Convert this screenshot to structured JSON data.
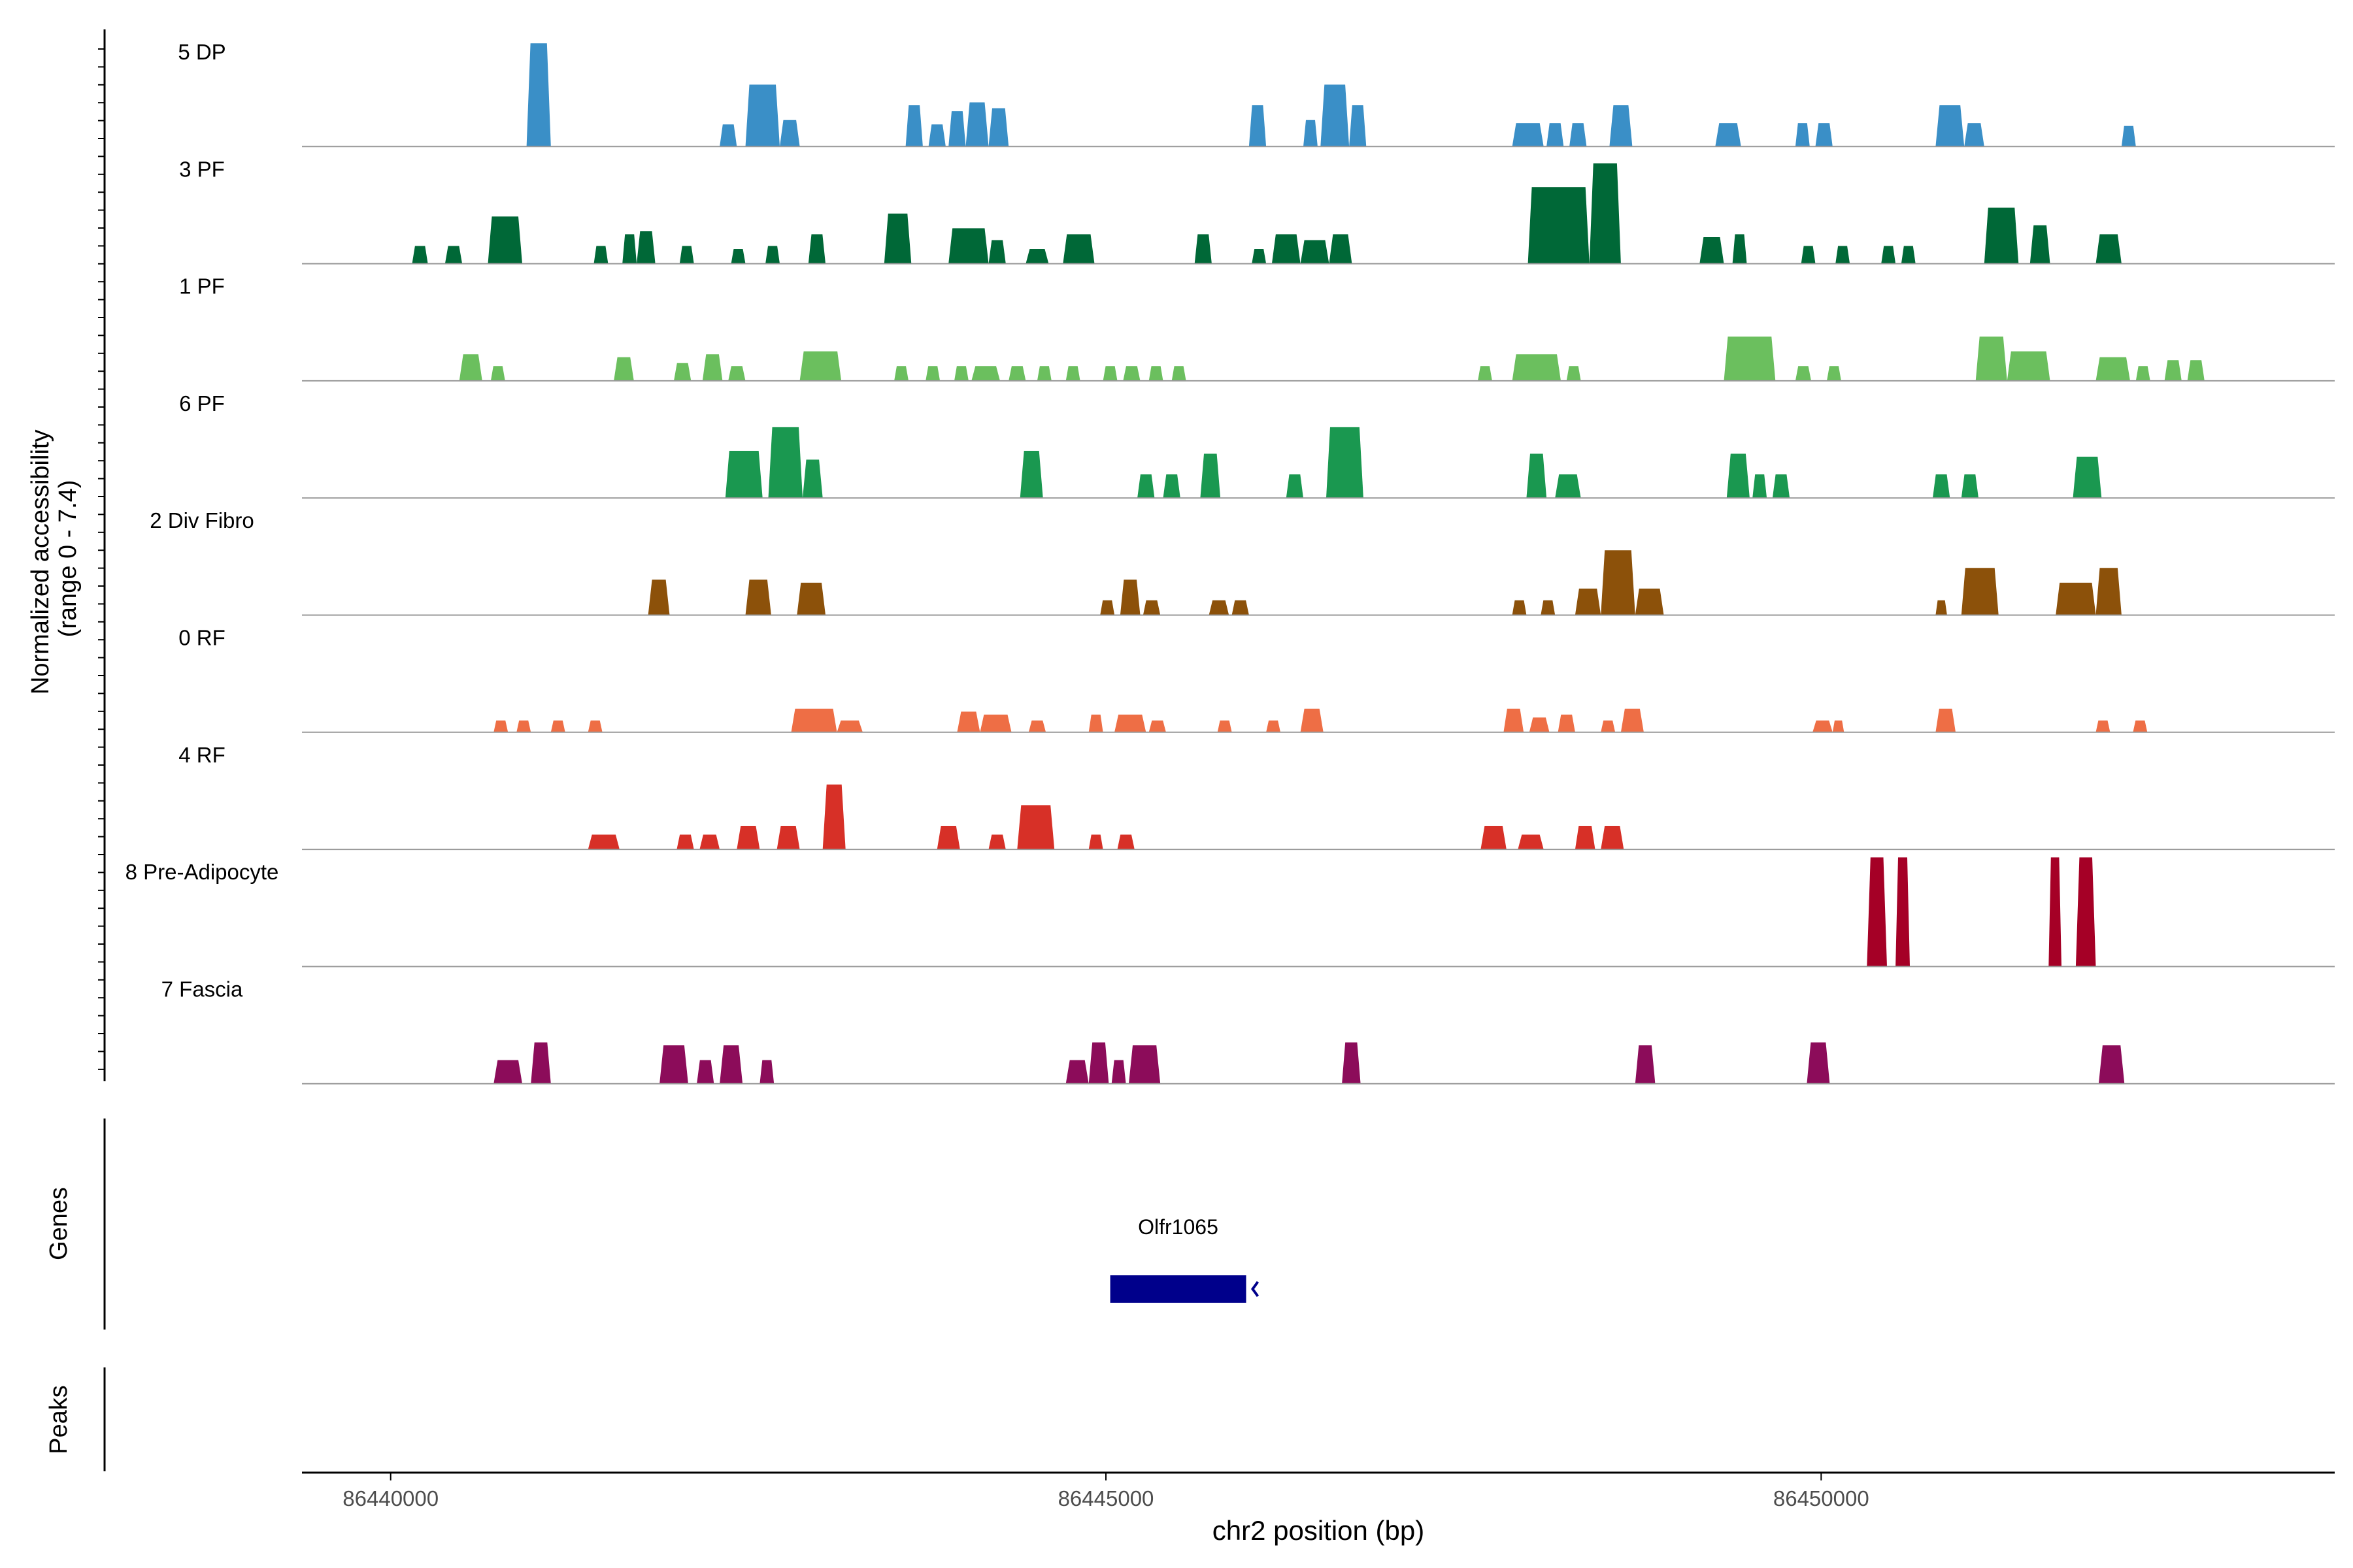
{
  "chart_data": {
    "type": "area",
    "panels": {
      "coverage": {
        "ylabel_line1": "Normalized accessibility",
        "ylabel_line2": "(range 0 - 7.4)",
        "ylim": [
          0,
          7.4
        ]
      },
      "genes": {
        "label": "Genes"
      },
      "peaks": {
        "label": "Peaks"
      }
    },
    "xlabel": "chr2 position (bp)",
    "xlim": [
      86439380,
      86453590
    ],
    "xticks": [
      {
        "value": 86440000,
        "label": "86440000"
      },
      {
        "value": 86445000,
        "label": "86445000"
      },
      {
        "value": 86450000,
        "label": "86450000"
      }
    ],
    "series": [
      {
        "name": "5 DP",
        "color": "#3A8FC7",
        "peaks": [
          [
            86440950,
            86441120,
            7.0
          ],
          [
            86442300,
            86442420,
            1.5
          ],
          [
            86442480,
            86442720,
            4.2
          ],
          [
            86442720,
            86442860,
            1.8
          ],
          [
            86443600,
            86443720,
            2.8
          ],
          [
            86443760,
            86443880,
            1.5
          ],
          [
            86443900,
            86444020,
            2.4
          ],
          [
            86444020,
            86444180,
            3.0
          ],
          [
            86444180,
            86444320,
            2.6
          ],
          [
            86446000,
            86446120,
            2.8
          ],
          [
            86446380,
            86446480,
            1.8
          ],
          [
            86446500,
            86446700,
            4.2
          ],
          [
            86446700,
            86446820,
            2.8
          ],
          [
            86447840,
            86448060,
            1.6
          ],
          [
            86448080,
            86448200,
            1.6
          ],
          [
            86448240,
            86448360,
            1.6
          ],
          [
            86448520,
            86448680,
            2.8
          ],
          [
            86449260,
            86449440,
            1.6
          ],
          [
            86449820,
            86449920,
            1.6
          ],
          [
            86449960,
            86450080,
            1.6
          ],
          [
            86450800,
            86451000,
            2.8
          ],
          [
            86451000,
            86451140,
            1.6
          ],
          [
            86452100,
            86452200,
            1.4
          ]
        ]
      },
      {
        "name": "3 PF",
        "color": "#006837",
        "peaks": [
          [
            86440150,
            86440260,
            1.2
          ],
          [
            86440380,
            86440500,
            1.2
          ],
          [
            86440680,
            86440920,
            3.2
          ],
          [
            86441420,
            86441520,
            1.2
          ],
          [
            86441620,
            86441720,
            2.0
          ],
          [
            86441720,
            86441850,
            2.2
          ],
          [
            86442020,
            86442120,
            1.2
          ],
          [
            86442380,
            86442480,
            1.0
          ],
          [
            86442620,
            86442720,
            1.2
          ],
          [
            86442920,
            86443040,
            2.0
          ],
          [
            86443450,
            86443640,
            3.4
          ],
          [
            86443900,
            86444180,
            2.4
          ],
          [
            86444180,
            86444300,
            1.6
          ],
          [
            86444440,
            86444600,
            1.0
          ],
          [
            86444700,
            86444920,
            2.0
          ],
          [
            86445620,
            86445740,
            2.0
          ],
          [
            86446020,
            86446120,
            1.0
          ],
          [
            86446160,
            86446360,
            2.0
          ],
          [
            86446360,
            86446560,
            1.6
          ],
          [
            86446560,
            86446720,
            2.0
          ],
          [
            86447950,
            86448380,
            5.2
          ],
          [
            86448380,
            86448600,
            6.8
          ],
          [
            86449150,
            86449320,
            1.8
          ],
          [
            86449380,
            86449480,
            2.0
          ],
          [
            86449860,
            86449960,
            1.2
          ],
          [
            86450100,
            86450200,
            1.2
          ],
          [
            86450420,
            86450520,
            1.2
          ],
          [
            86450560,
            86450660,
            1.2
          ],
          [
            86451140,
            86451380,
            3.8
          ],
          [
            86451460,
            86451600,
            2.6
          ],
          [
            86451920,
            86452100,
            2.0
          ]
        ]
      },
      {
        "name": "1 PF",
        "color": "#6BBF5E",
        "peaks": [
          [
            86440480,
            86440640,
            1.8
          ],
          [
            86440700,
            86440800,
            1.0
          ],
          [
            86441560,
            86441700,
            1.6
          ],
          [
            86441980,
            86442100,
            1.2
          ],
          [
            86442180,
            86442320,
            1.8
          ],
          [
            86442360,
            86442480,
            1.0
          ],
          [
            86442860,
            86443150,
            2.0
          ],
          [
            86443520,
            86443620,
            1.0
          ],
          [
            86443740,
            86443840,
            1.0
          ],
          [
            86443940,
            86444040,
            1.0
          ],
          [
            86444060,
            86444260,
            1.0
          ],
          [
            86444320,
            86444440,
            1.0
          ],
          [
            86444520,
            86444620,
            1.0
          ],
          [
            86444720,
            86444820,
            1.0
          ],
          [
            86444980,
            86445080,
            1.0
          ],
          [
            86445120,
            86445240,
            1.0
          ],
          [
            86445300,
            86445400,
            1.0
          ],
          [
            86445460,
            86445560,
            1.0
          ],
          [
            86447600,
            86447700,
            1.0
          ],
          [
            86447840,
            86448180,
            1.8
          ],
          [
            86448220,
            86448320,
            1.0
          ],
          [
            86449320,
            86449680,
            3.0
          ],
          [
            86449820,
            86449930,
            1.0
          ],
          [
            86450040,
            86450140,
            1.0
          ],
          [
            86451080,
            86451300,
            3.0
          ],
          [
            86451300,
            86451600,
            2.0
          ],
          [
            86451920,
            86452160,
            1.6
          ],
          [
            86452200,
            86452300,
            1.0
          ],
          [
            86452400,
            86452520,
            1.4
          ],
          [
            86452560,
            86452680,
            1.4
          ]
        ]
      },
      {
        "name": "6 PF",
        "color": "#1A9850",
        "peaks": [
          [
            86442340,
            86442600,
            3.2
          ],
          [
            86442640,
            86442880,
            4.8
          ],
          [
            86442880,
            86443020,
            2.6
          ],
          [
            86444400,
            86444560,
            3.2
          ],
          [
            86445220,
            86445340,
            1.6
          ],
          [
            86445400,
            86445520,
            1.6
          ],
          [
            86445660,
            86445800,
            3.0
          ],
          [
            86446260,
            86446380,
            1.6
          ],
          [
            86446540,
            86446800,
            4.8
          ],
          [
            86447940,
            86448080,
            3.0
          ],
          [
            86448140,
            86448320,
            1.6
          ],
          [
            86449340,
            86449500,
            3.0
          ],
          [
            86449520,
            86449620,
            1.6
          ],
          [
            86449660,
            86449780,
            1.6
          ],
          [
            86450780,
            86450900,
            1.6
          ],
          [
            86450980,
            86451100,
            1.6
          ],
          [
            86451760,
            86451960,
            2.8
          ]
        ]
      },
      {
        "name": "2 Div Fibro",
        "color": "#8C510A",
        "peaks": [
          [
            86441800,
            86441950,
            2.4
          ],
          [
            86442480,
            86442660,
            2.4
          ],
          [
            86442840,
            86443040,
            2.2
          ],
          [
            86444960,
            86445060,
            1.0
          ],
          [
            86445100,
            86445240,
            2.4
          ],
          [
            86445260,
            86445380,
            1.0
          ],
          [
            86445720,
            86445860,
            1.0
          ],
          [
            86445880,
            86446000,
            1.0
          ],
          [
            86447840,
            86447940,
            1.0
          ],
          [
            86448040,
            86448140,
            1.0
          ],
          [
            86448280,
            86448460,
            1.8
          ],
          [
            86448460,
            86448700,
            4.4
          ],
          [
            86448700,
            86448900,
            1.8
          ],
          [
            86450800,
            86450880,
            1.0
          ],
          [
            86450980,
            86451240,
            3.2
          ],
          [
            86451640,
            86451920,
            2.2
          ],
          [
            86451920,
            86452100,
            3.2
          ]
        ]
      },
      {
        "name": "0 RF",
        "color": "#EE6E45",
        "peaks": [
          [
            86440720,
            86440820,
            0.8
          ],
          [
            86440880,
            86440980,
            0.8
          ],
          [
            86441120,
            86441220,
            0.8
          ],
          [
            86441380,
            86441480,
            0.8
          ],
          [
            86442800,
            86443120,
            1.6
          ],
          [
            86443120,
            86443300,
            0.8
          ],
          [
            86443960,
            86444120,
            1.4
          ],
          [
            86444120,
            86444340,
            1.2
          ],
          [
            86444460,
            86444580,
            0.8
          ],
          [
            86444880,
            86444980,
            1.2
          ],
          [
            86445060,
            86445280,
            1.2
          ],
          [
            86445300,
            86445420,
            0.8
          ],
          [
            86445780,
            86445880,
            0.8
          ],
          [
            86446120,
            86446220,
            0.8
          ],
          [
            86446360,
            86446520,
            1.6
          ],
          [
            86447780,
            86447920,
            1.6
          ],
          [
            86447960,
            86448100,
            1.0
          ],
          [
            86448160,
            86448280,
            1.2
          ],
          [
            86448460,
            86448560,
            0.8
          ],
          [
            86448600,
            86448760,
            1.6
          ],
          [
            86449940,
            86450080,
            0.8
          ],
          [
            86450080,
            86450160,
            0.8
          ],
          [
            86450800,
            86450940,
            1.6
          ],
          [
            86451920,
            86452020,
            0.8
          ],
          [
            86452180,
            86452280,
            0.8
          ]
        ]
      },
      {
        "name": "4 RF",
        "color": "#D73027",
        "peaks": [
          [
            86441380,
            86441600,
            1.0
          ],
          [
            86442000,
            86442120,
            1.0
          ],
          [
            86442160,
            86442300,
            1.0
          ],
          [
            86442420,
            86442580,
            1.6
          ],
          [
            86442700,
            86442860,
            1.6
          ],
          [
            86443020,
            86443180,
            4.4
          ],
          [
            86443820,
            86443980,
            1.6
          ],
          [
            86444180,
            86444300,
            1.0
          ],
          [
            86444380,
            86444640,
            3.0
          ],
          [
            86444880,
            86444980,
            1.0
          ],
          [
            86445080,
            86445200,
            1.0
          ],
          [
            86447620,
            86447800,
            1.6
          ],
          [
            86447880,
            86448060,
            1.0
          ],
          [
            86448280,
            86448420,
            1.6
          ],
          [
            86448460,
            86448620,
            1.6
          ]
        ]
      },
      {
        "name": "8 Pre-Adipocyte",
        "color": "#A50026",
        "peaks": [
          [
            86450320,
            86450460,
            7.4
          ],
          [
            86450520,
            86450620,
            7.4
          ],
          [
            86451590,
            86451680,
            7.4
          ],
          [
            86451780,
            86451920,
            7.4
          ]
        ]
      },
      {
        "name": "7 Fascia",
        "color": "#8C0C5A",
        "peaks": [
          [
            86440720,
            86440920,
            1.6
          ],
          [
            86440980,
            86441120,
            2.8
          ],
          [
            86441880,
            86442080,
            2.6
          ],
          [
            86442140,
            86442260,
            1.6
          ],
          [
            86442300,
            86442460,
            2.6
          ],
          [
            86442580,
            86442680,
            1.6
          ],
          [
            86444720,
            86444880,
            1.6
          ],
          [
            86444880,
            86445020,
            2.8
          ],
          [
            86445040,
            86445140,
            1.6
          ],
          [
            86445160,
            86445380,
            2.6
          ],
          [
            86446650,
            86446780,
            2.8
          ],
          [
            86448700,
            86448840,
            2.6
          ],
          [
            86449900,
            86450060,
            2.8
          ],
          [
            86451940,
            86452120,
            2.6
          ]
        ]
      }
    ],
    "genes": [
      {
        "name": "Olfr1065",
        "start": 86445030,
        "end": 86445980,
        "strand": "-",
        "color": "#00008B"
      }
    ],
    "peak_regions": []
  }
}
